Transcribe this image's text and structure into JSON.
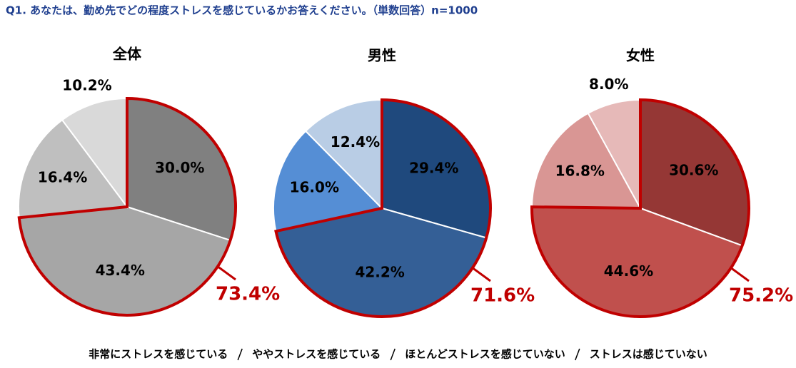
{
  "title": "Q1. あなたは、勤め先でどの程度ストレスを感じているかお答えください。（単数回答）n=1000",
  "chart_data": [
    {
      "type": "pie",
      "title": "全体",
      "categories": [
        "非常にストレスを感じている",
        "ややストレスを感じている",
        "ほとんどストレスを感じていない",
        "ストレスは感じていない"
      ],
      "values": [
        30.0,
        43.4,
        16.4,
        10.2
      ],
      "value_labels": [
        "30.0%",
        "43.4%",
        "16.4%",
        "10.2%"
      ],
      "colors": [
        "#808080",
        "#a6a6a6",
        "#bfbfbf",
        "#d9d9d9"
      ],
      "annotation": "73.4%"
    },
    {
      "type": "pie",
      "title": "男性",
      "categories": [
        "非常にストレスを感じている",
        "ややストレスを感じている",
        "ほとんどストレスを感じていない",
        "ストレスは感じていない"
      ],
      "values": [
        29.4,
        42.2,
        16.0,
        12.4
      ],
      "value_labels": [
        "29.4%",
        "42.2%",
        "16.0%",
        "12.4%"
      ],
      "colors": [
        "#1f497d",
        "#345f96",
        "#558ed5",
        "#b9cde5"
      ],
      "annotation": "71.6%"
    },
    {
      "type": "pie",
      "title": "女性",
      "categories": [
        "非常にストレスを感じている",
        "ややストレスを感じている",
        "ほとんどストレスを感じていない",
        "ストレスは感じていない"
      ],
      "values": [
        30.6,
        44.6,
        16.8,
        8.0
      ],
      "value_labels": [
        "30.6%",
        "44.6%",
        "16.8%",
        "8.0%"
      ],
      "colors": [
        "#953735",
        "#c0504d",
        "#d99694",
        "#e6b9b8"
      ],
      "annotation": "75.2%"
    }
  ]
}
